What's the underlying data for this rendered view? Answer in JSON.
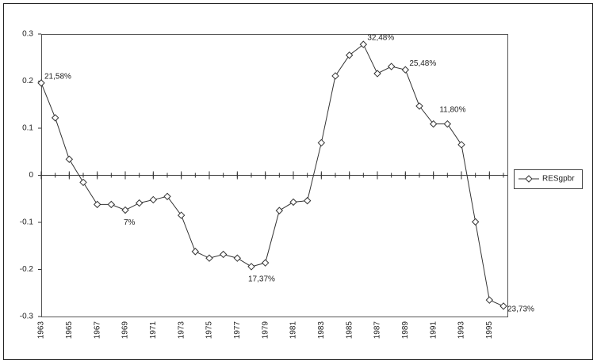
{
  "chart_data": {
    "type": "line",
    "x": [
      1963,
      1964,
      1965,
      1966,
      1967,
      1968,
      1969,
      1970,
      1971,
      1972,
      1973,
      1974,
      1975,
      1976,
      1977,
      1978,
      1979,
      1980,
      1981,
      1982,
      1983,
      1984,
      1985,
      1986,
      1987,
      1988,
      1989,
      1990,
      1991,
      1992,
      1993,
      1994,
      1995,
      1996
    ],
    "series": [
      {
        "name": "RESgpbr",
        "color": "#333333",
        "values": [
          0.196,
          0.122,
          0.034,
          -0.015,
          -0.062,
          -0.062,
          -0.074,
          -0.059,
          -0.052,
          -0.045,
          -0.085,
          -0.162,
          -0.176,
          -0.168,
          -0.176,
          -0.194,
          -0.186,
          -0.075,
          -0.057,
          -0.054,
          0.069,
          0.211,
          0.255,
          0.278,
          0.216,
          0.231,
          0.224,
          0.147,
          0.109,
          0.109,
          0.065,
          -0.099,
          -0.265,
          -0.278
        ]
      }
    ],
    "xlim": [
      1963,
      1996
    ],
    "xticks": [
      1963,
      1965,
      1967,
      1969,
      1971,
      1973,
      1975,
      1977,
      1979,
      1981,
      1983,
      1985,
      1987,
      1989,
      1991,
      1993,
      1995
    ],
    "ylim": [
      -0.3,
      0.3
    ],
    "yticks": [
      0.3,
      0.2,
      0.1,
      0,
      -0.1,
      -0.2,
      -0.3
    ],
    "annotations": [
      {
        "text": "21,58%",
        "x": 1963
      },
      {
        "text": "7%",
        "x": 1969
      },
      {
        "text": "17,37%",
        "x": 1978
      },
      {
        "text": "32,48%",
        "x": 1986
      },
      {
        "text": "25,48%",
        "x": 1989
      },
      {
        "text": "11,80%",
        "x": 1992
      },
      {
        "text": "23,73%",
        "x": 1996
      }
    ],
    "legend": "right"
  }
}
